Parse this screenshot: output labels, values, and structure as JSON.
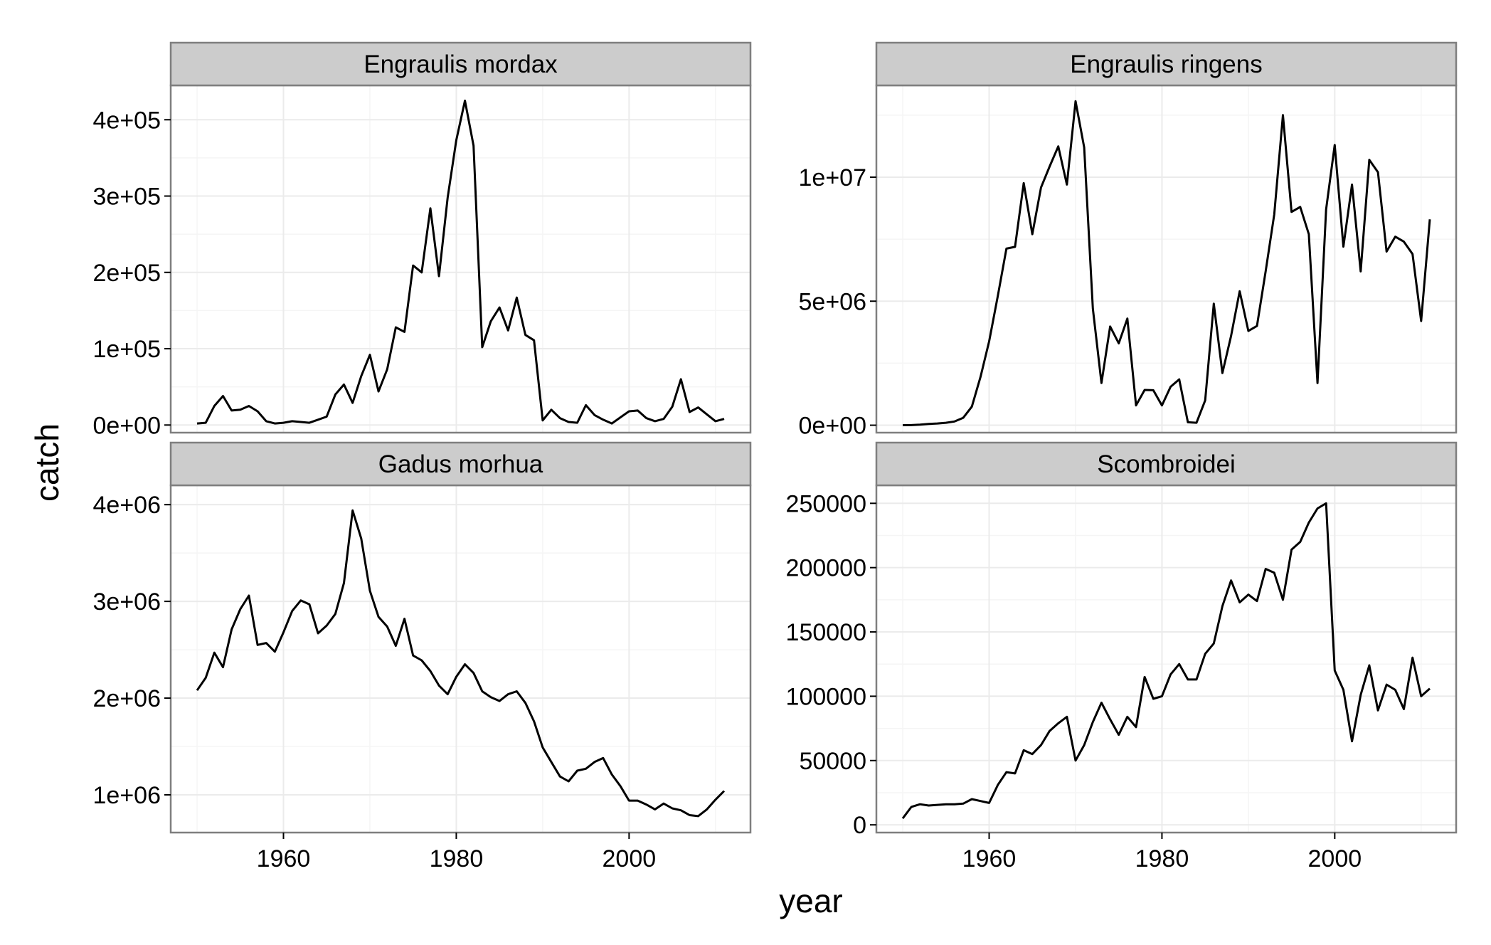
{
  "colors": {
    "background": "#ffffff",
    "panel_background": "#ffffff",
    "panel_border": "#7f7f7f",
    "grid_major": "#ebebeb",
    "grid_minor": "#f5f5f5",
    "strip_fill": "#cccccc",
    "strip_border": "#7f7f7f",
    "line": "#000000",
    "text": "#000000"
  },
  "chart_data": {
    "type": "line",
    "facet": "wrap",
    "facet_scales": "free_y",
    "xlabel": "year",
    "ylabel": "catch",
    "grid": true,
    "x_range": [
      1946.95,
      2014.05
    ],
    "x_ticks": [
      1960,
      1980,
      2000
    ],
    "x_tick_labels": [
      "1960",
      "1980",
      "2000"
    ],
    "panels": [
      {
        "label": "Engraulis mordax",
        "ylim": [
          -10000,
          445000
        ],
        "y_ticks": [
          0,
          100000,
          200000,
          300000,
          400000
        ],
        "y_tick_labels": [
          "0e+00",
          "1e+05",
          "2e+05",
          "3e+05",
          "4e+05"
        ],
        "x": [
          1950,
          1951,
          1952,
          1953,
          1954,
          1955,
          1956,
          1957,
          1958,
          1959,
          1960,
          1961,
          1962,
          1963,
          1964,
          1965,
          1966,
          1967,
          1968,
          1969,
          1970,
          1971,
          1972,
          1973,
          1974,
          1975,
          1976,
          1977,
          1978,
          1979,
          1980,
          1981,
          1982,
          1983,
          1984,
          1985,
          1986,
          1987,
          1988,
          1989,
          1990,
          1991,
          1992,
          1993,
          1994,
          1995,
          1996,
          1997,
          1998,
          1999,
          2000,
          2001,
          2002,
          2003,
          2004,
          2005,
          2006,
          2007,
          2008,
          2009,
          2010,
          2011
        ],
        "values": [
          2000,
          3000,
          25000,
          38000,
          19000,
          20000,
          25000,
          18000,
          5000,
          2000,
          3000,
          5000,
          4000,
          3000,
          7000,
          11000,
          40000,
          53000,
          29000,
          64000,
          92000,
          44000,
          73000,
          128000,
          122000,
          209000,
          200000,
          284000,
          195000,
          298000,
          373000,
          425000,
          366000,
          102000,
          136000,
          154000,
          124000,
          167000,
          118000,
          111000,
          6000,
          20000,
          9000,
          4000,
          3000,
          26000,
          13000,
          7000,
          2000,
          10000,
          18000,
          19000,
          9000,
          5000,
          8000,
          24000,
          60000,
          17000,
          23000,
          14000,
          5000,
          8000
        ]
      },
      {
        "label": "Engraulis ringens",
        "ylim": [
          -300000,
          13700000
        ],
        "y_ticks": [
          0,
          5000000,
          10000000
        ],
        "y_tick_labels": [
          "0e+00",
          "5e+06",
          "1e+07"
        ],
        "x": [
          1950,
          1951,
          1952,
          1953,
          1954,
          1955,
          1956,
          1957,
          1958,
          1959,
          1960,
          1961,
          1962,
          1963,
          1964,
          1965,
          1966,
          1967,
          1968,
          1969,
          1970,
          1971,
          1972,
          1973,
          1974,
          1975,
          1976,
          1977,
          1978,
          1979,
          1980,
          1981,
          1982,
          1983,
          1984,
          1985,
          1986,
          1987,
          1988,
          1989,
          1990,
          1991,
          1992,
          1993,
          1994,
          1995,
          1996,
          1997,
          1998,
          1999,
          2000,
          2001,
          2002,
          2003,
          2004,
          2005,
          2006,
          2007,
          2008,
          2009,
          2010,
          2011
        ],
        "values": [
          0,
          5000,
          20000,
          50000,
          70000,
          100000,
          150000,
          300000,
          750000,
          1950000,
          3380000,
          5210000,
          7120000,
          7190000,
          9760000,
          7700000,
          9580000,
          10430000,
          11240000,
          9700000,
          13060000,
          11200000,
          4700000,
          1700000,
          3980000,
          3300000,
          4300000,
          800000,
          1420000,
          1410000,
          800000,
          1550000,
          1850000,
          120000,
          100000,
          1000000,
          4900000,
          2100000,
          3600000,
          5400000,
          3800000,
          4000000,
          6200000,
          8500000,
          12500000,
          8600000,
          8800000,
          7700000,
          1700000,
          8700000,
          11300000,
          7200000,
          9700000,
          6200000,
          10700000,
          10200000,
          7000000,
          7600000,
          7400000,
          6900000,
          4200000,
          8300000
        ]
      },
      {
        "label": "Gadus morhua",
        "ylim": [
          610000,
          4200000
        ],
        "y_ticks": [
          1000000,
          2000000,
          3000000,
          4000000
        ],
        "y_tick_labels": [
          "1e+06",
          "2e+06",
          "3e+06",
          "4e+06"
        ],
        "x": [
          1950,
          1951,
          1952,
          1953,
          1954,
          1955,
          1956,
          1957,
          1958,
          1959,
          1960,
          1961,
          1962,
          1963,
          1964,
          1965,
          1966,
          1967,
          1968,
          1969,
          1970,
          1971,
          1972,
          1973,
          1974,
          1975,
          1976,
          1977,
          1978,
          1979,
          1980,
          1981,
          1982,
          1983,
          1984,
          1985,
          1986,
          1987,
          1988,
          1989,
          1990,
          1991,
          1992,
          1993,
          1994,
          1995,
          1996,
          1997,
          1998,
          1999,
          2000,
          2001,
          2002,
          2003,
          2004,
          2005,
          2006,
          2007,
          2008,
          2009,
          2010,
          2011
        ],
        "values": [
          2080000,
          2210000,
          2470000,
          2320000,
          2710000,
          2920000,
          3060000,
          2550000,
          2570000,
          2480000,
          2680000,
          2900000,
          3010000,
          2970000,
          2670000,
          2750000,
          2870000,
          3190000,
          3940000,
          3650000,
          3110000,
          2840000,
          2740000,
          2540000,
          2820000,
          2440000,
          2390000,
          2280000,
          2130000,
          2040000,
          2220000,
          2350000,
          2260000,
          2070000,
          2010000,
          1970000,
          2040000,
          2070000,
          1950000,
          1760000,
          1490000,
          1340000,
          1190000,
          1140000,
          1250000,
          1270000,
          1340000,
          1380000,
          1210000,
          1090000,
          940000,
          940000,
          900000,
          850000,
          910000,
          860000,
          840000,
          790000,
          780000,
          850000,
          950000,
          1040000
        ]
      },
      {
        "label": "Scombroidei",
        "ylim": [
          -6000,
          264000
        ],
        "y_ticks": [
          0,
          50000,
          100000,
          150000,
          200000,
          250000
        ],
        "y_tick_labels": [
          "0",
          "50000",
          "100000",
          "150000",
          "200000",
          "250000"
        ],
        "x": [
          1950,
          1951,
          1952,
          1953,
          1954,
          1955,
          1956,
          1957,
          1958,
          1959,
          1960,
          1961,
          1962,
          1963,
          1964,
          1965,
          1966,
          1967,
          1968,
          1969,
          1970,
          1971,
          1972,
          1973,
          1974,
          1975,
          1976,
          1977,
          1978,
          1979,
          1980,
          1981,
          1982,
          1983,
          1984,
          1985,
          1986,
          1987,
          1988,
          1989,
          1990,
          1991,
          1992,
          1993,
          1994,
          1995,
          1996,
          1997,
          1998,
          1999,
          2000,
          2001,
          2002,
          2003,
          2004,
          2005,
          2006,
          2007,
          2008,
          2009,
          2010,
          2011
        ],
        "values": [
          5000,
          14000,
          16000,
          15000,
          15500,
          16000,
          16000,
          16500,
          20000,
          18500,
          17000,
          31000,
          41000,
          40000,
          58000,
          55000,
          62000,
          73000,
          79000,
          84000,
          50000,
          62000,
          80000,
          95000,
          82000,
          70000,
          84000,
          76000,
          115000,
          98000,
          100000,
          117000,
          125000,
          113000,
          113000,
          133000,
          141000,
          170000,
          190000,
          173000,
          179000,
          174000,
          199000,
          196000,
          175000,
          214000,
          220000,
          235000,
          246000,
          250000,
          120000,
          105000,
          65000,
          101000,
          124000,
          89000,
          109000,
          105000,
          90000,
          130000,
          100000,
          106000
        ]
      }
    ]
  }
}
